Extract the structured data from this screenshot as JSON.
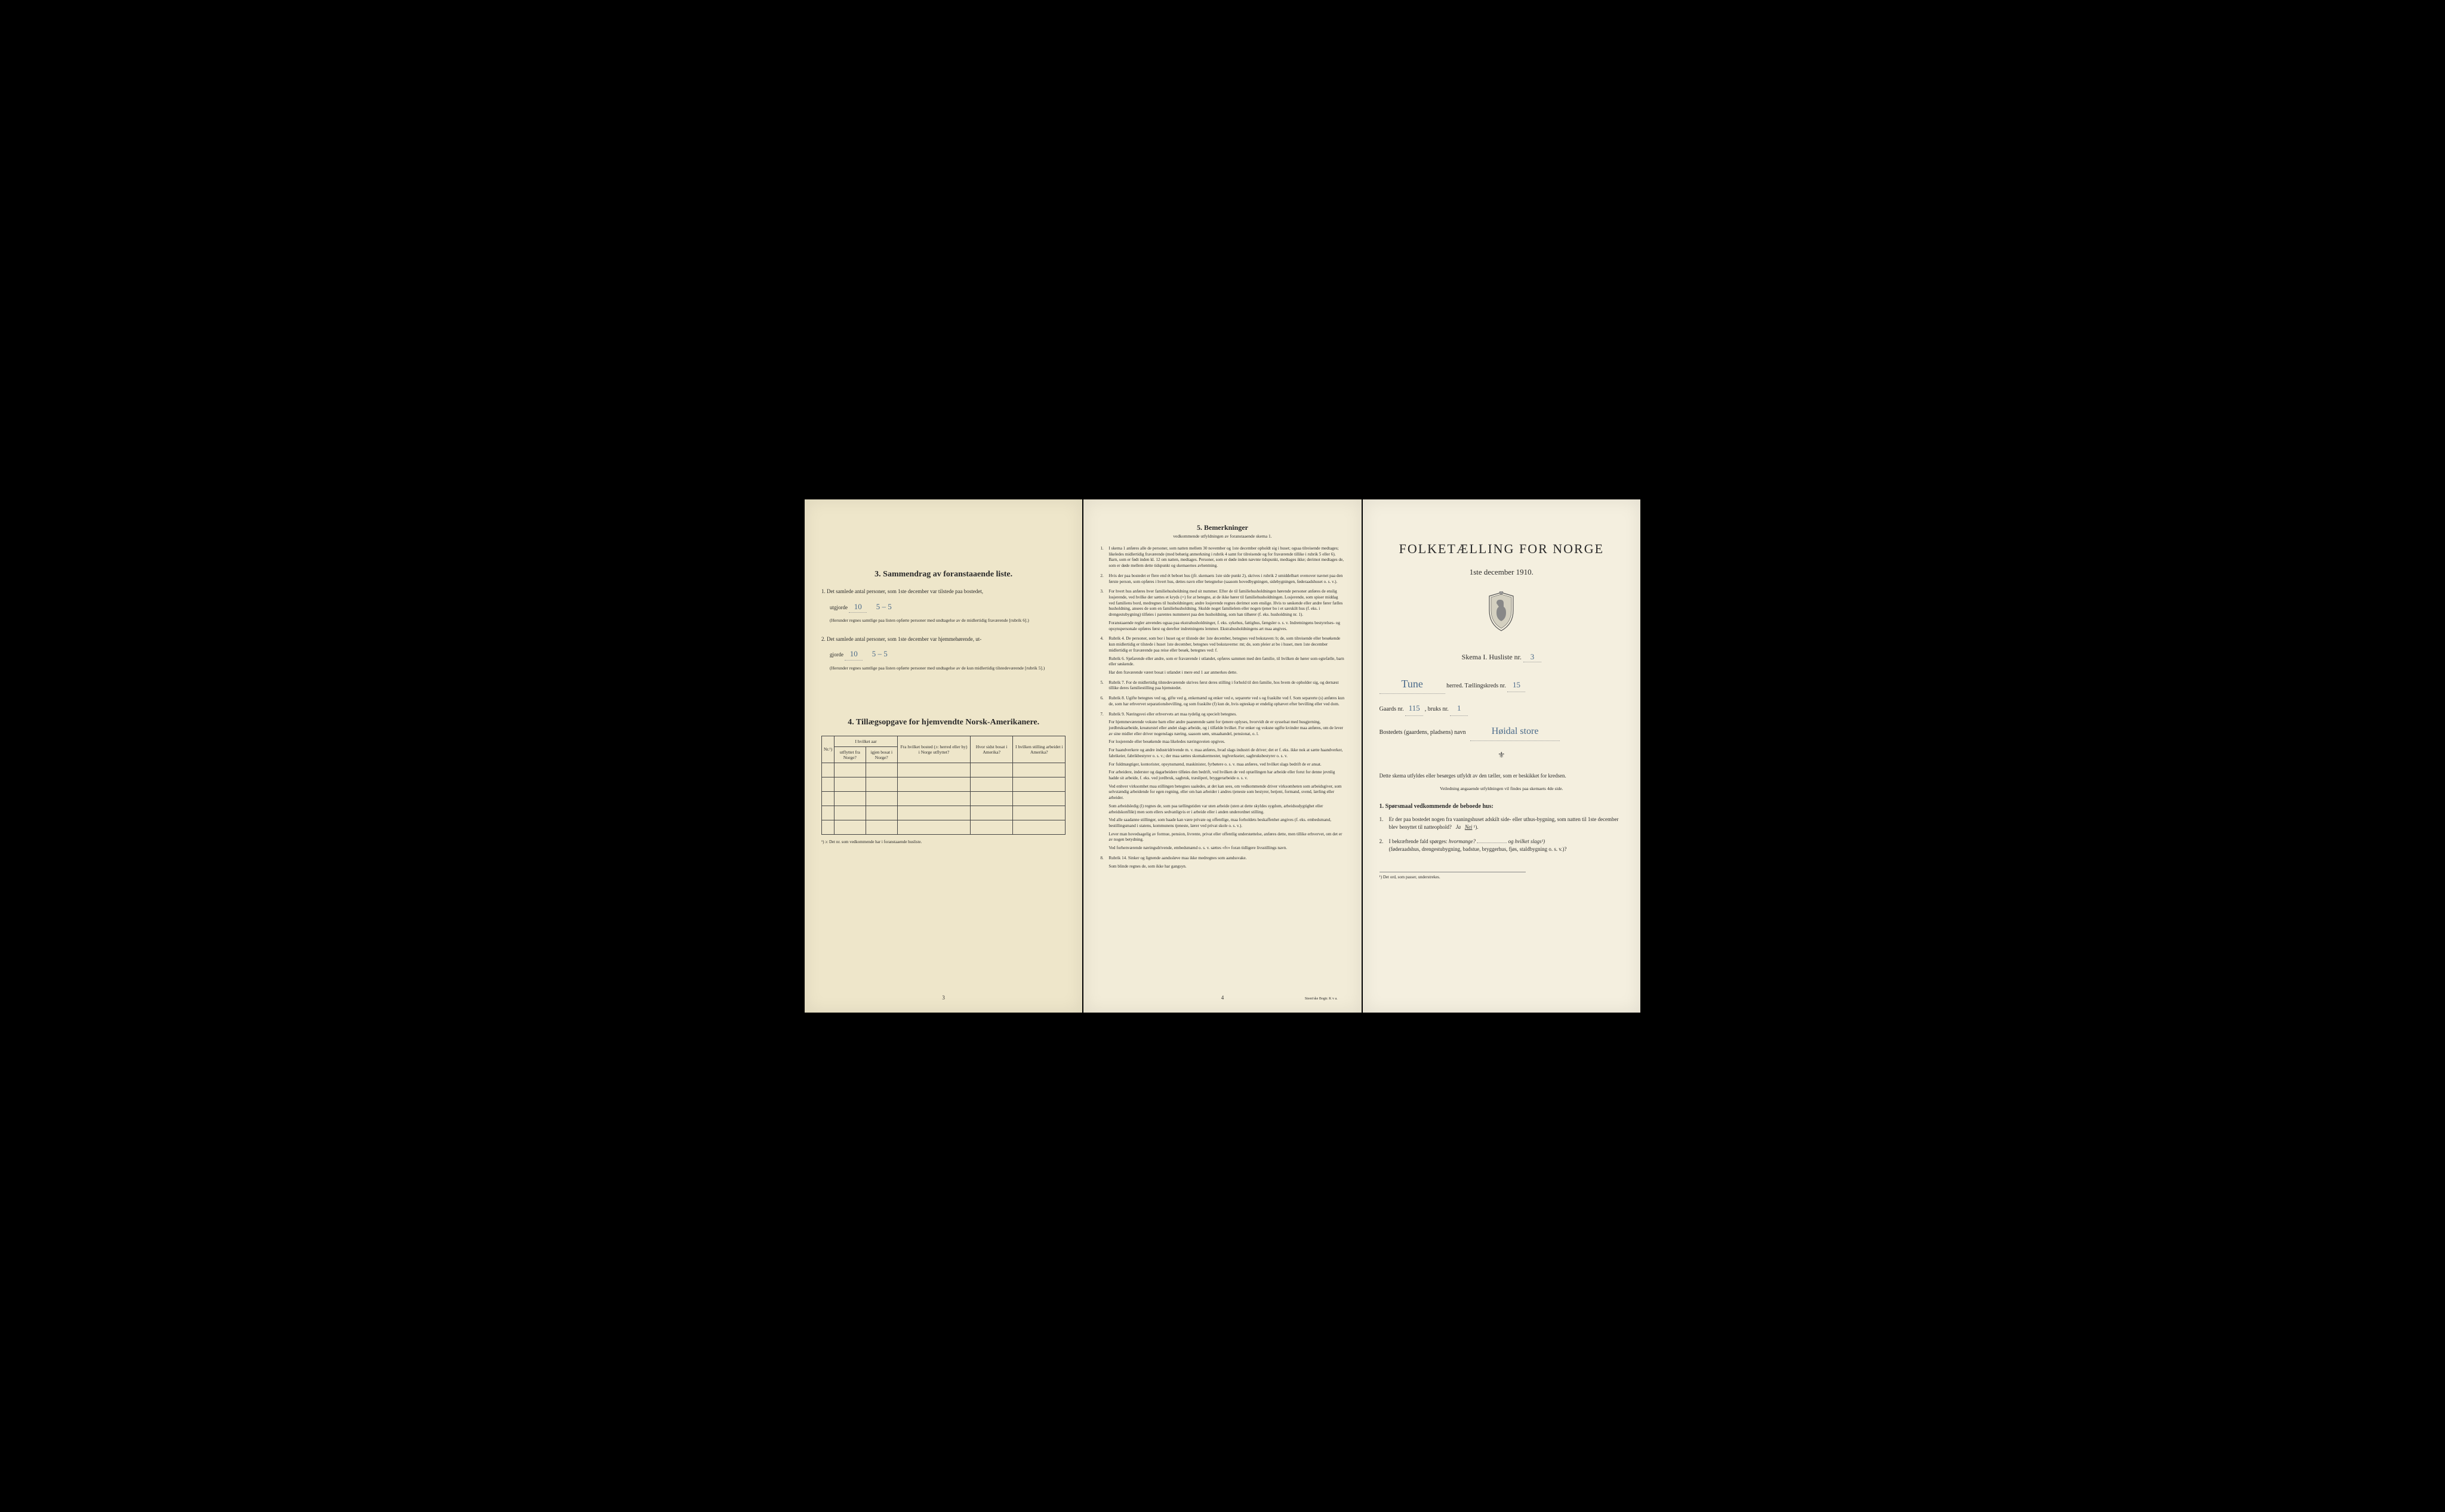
{
  "page1": {
    "section3_title": "3.  Sammendrag av foranstaaende liste.",
    "item1_label": "1.",
    "item1_text_a": "Det samlede antal personer, som 1ste december var tilstede paa bostedet,",
    "item1_text_b": "utgjorde",
    "item1_value": "10",
    "item1_value2": "5 – 5",
    "item1_note": "(Herunder regnes samtlige paa listen opførte personer med undtagelse av de midlertidig fraværende [rubrik 6].)",
    "item2_label": "2.",
    "item2_text_a": "Det samlede antal personer, som 1ste december var hjemmehørende, ut-",
    "item2_text_b": "gjorde",
    "item2_value": "10",
    "item2_value2": "5 – 5",
    "item2_note": "(Herunder regnes samtlige paa listen opførte personer med undtagelse av de kun midlertidig tilstedeværende [rubrik 5].)",
    "section4_title": "4.  Tillægsopgave for hjemvendte Norsk-Amerikanere.",
    "table_headers": {
      "col1": "Nr.¹)",
      "col2a": "I hvilket aar",
      "col2b": "utflyttet fra Norge?",
      "col2c": "igjen bosat i Norge?",
      "col3": "Fra hvilket bosted (ɔ: herred eller by) i Norge utflyttet?",
      "col4": "Hvor sidst bosat i Amerika?",
      "col5": "I hvilken stilling arbeidet i Amerika?"
    },
    "footnote": "¹) ɔ: Det nr. som vedkommende har i foranstaaende husliste.",
    "pagenum": "3"
  },
  "page2": {
    "title": "5.  Bemerkninger",
    "subtitle": "vedkommende utfyldningen av foranstaaende skema 1.",
    "items": [
      {
        "n": "1.",
        "t": "I skema 1 anføres alle de personer, som natten mellem 30 november og 1ste december opholdt sig i huset; ogsaa tilreisende medtages; likeledes midlertidig fraværende (med behørig anmerkning i rubrik 4 samt for tilreisende og for fraværende tillike i rubrik 5 eller 6). Barn, som er født inden kl. 12 om natten, medtages. Personer, som er døde inden nævnte tidspunkt, medtages ikke; derimot medtages de, som er døde mellem dette tidspunkt og skemaernes avhentning."
      },
      {
        "n": "2.",
        "t": "Hvis der paa bostedet er flere end ét beboet hus (jfr. skemaets 1ste side punkt 2), skrives i rubrik 2 umiddelbart ovenover navnet paa den første person, som opføres i hvert hus, dettes navn eller betegnelse (saasom hovedbygningen, sidebygningen, føderaadshuset o. s. v.)."
      },
      {
        "n": "3.",
        "t": "For hvert hus anføres hver familiehusholdning med sit nummer. Efter de til familiehusholdningen hørende personer anføres de enslig losjerende, ved hvilke der sættes et kryds (×) for at betegne, at de ikke hører til familiehusholdningen. Losjerende, som spiser middag ved familiens bord, medregnes til husholdningen; andre losjerende regnes derimot som enslige. Hvis to søskende eller andre fører fælles husholdning, ansees de som en familiehusholdning. Skulde noget familielem eller nogen tjener bo i et særskilt hus (f. eks. i drengestubygning) tilføies i parentes nummeret paa den husholdning, som han tilhører (f. eks. husholdning nr. 1).\n    Foranstaaende regler anvendes ogsaa paa ekstrahusholdninger, f. eks. sykehus, fattighus, fængsler o. s. v. Indretningens bestyrelses- og opsynspersonale opføres først og derefter indretningens lemmer. Ekstrahusholdningens art maa angives."
      },
      {
        "n": "4.",
        "t": "Rubrik 4. De personer, som bor i huset og er tilstede der 1ste december, betegnes ved bokstaven: b; de, som tilreisende eller besøkende kun midlertidig er tilstede i huset 1ste december, betegnes ved bokstaverne: mt; de, som pleier at bo i huset, men 1ste december midlertidig er fraværende paa reise eller besøk, betegnes ved: f.\n    Rubrik 6. Sjøfarende eller andre, som er fraværende i utlandet, opføres sammen med den familie, til hvilken de hører som egtefælle, barn eller søskende.\n    Har den fraværende været bosat i utlandet i mere end 1 aar anmerkes dette."
      },
      {
        "n": "5.",
        "t": "Rubrik 7. For de midlertidig tilstedeværende skrives først deres stilling i forhold til den familie, hos hvem de opholder sig, og dernæst tillike deres familiestilling paa hjemstedet."
      },
      {
        "n": "6.",
        "t": "Rubrik 8. Ugifte betegnes ved ug, gifte ved g, enkemænd og enker ved e, separerte ved s og fraskilte ved f. Som separerte (s) anføres kun de, som har erhvervet separationsbevilling, og som fraskilte (f) kun de, hvis egteskap er endelig ophævet efter bevilling eller ved dom."
      },
      {
        "n": "7.",
        "t": "Rubrik 9. Næringsvei eller erhvervets art maa tydelig og specielt betegnes.\n    For hjemmeværende voksne barn eller andre paarørende samt for tjenere oplyses, hvorvidt de er sysselsat med husgjerning, jordbruksarbeide, kreaturstel eller andet slags arbeide, og i tilfælde hvilket. For enker og voksne ugifte kvinder maa anføres, om de lever av sine midler eller driver nogenslags næring, saasom søm, smaahandel, pensionat, o. l.\n    For losjerende eller besøkende maa likeledes næringsveien opgives.\n    For haandverkere og andre industridrivende m. v. maa anføres, hvad slags industri de driver; det er f. eks. ikke nok at sætte haandverker, fabrikeier, fabrikbestyrer o. s. v.; der maa sættes skomakermester, teglverkseier, sagbruksbestyrer o. s. v.\n    For fuldmægtiger, kontorister, opsynsmænd, maskinister, fyrbøtere o. s. v. maa anføres, ved hvilket slags bedrift de er ansat.\n    For arbeidere, inderster og dagarbeidere tilføies den bedrift, ved hvilken de ved optællingen har arbeide eller forut for denne jevnlig hadde sit arbeide, f. eks. ved jordbruk, sagbruk, træsliperi, bryggerarbeide o. s. v.\n    Ved enhver virksomhet maa stillingen betegnes saaledes, at det kan sees, om vedkommende driver virksomheten som arbeidsgiver, som selvstændig arbeidende for egen regning, eller om han arbeider i andres tjeneste som bestyrer, betjent, formand, svend, lærling eller arbeider.\n    Som arbeidsledig (l) regnes de, som paa tællingstiden var uten arbeide (uten at dette skyldes sygdom, arbeidsudygtighet eller arbeidskonflikt) men som ellers sedvanligvis er i arbeide eller i anden underordnet stilling.\n    Ved alle saadanne stillinger, som baade kan være private og offentlige, maa forholdets beskaffenhet angives (f. eks. embedsmand, bestillingsmand i statens, kommunens tjeneste, lærer ved privat skole o. s. v.).\n    Lever man hovedsagelig av formue, pension, livrente, privat eller offentlig understøttelse, anføres dette, men tillike erhvervet, om det er av nogen betydning.\n    Ved forhenværende næringsdrivende, embedsmænd o. s. v. sættes «fv» foran tidligere livsstillings navn."
      },
      {
        "n": "8.",
        "t": "Rubrik 14. Sinker og lignende aandssløve maa ikke medregnes som aandssvake.\n    Som blinde regnes de, som ikke har gangsyn."
      }
    ],
    "pagenum": "4",
    "printer": "Steen'ske Bogtr.   K v a."
  },
  "page3": {
    "main_title": "FOLKETÆLLING FOR NORGE",
    "date": "1ste december 1910.",
    "skema_label": "Skema I.  Husliste nr.",
    "skema_nr": "3",
    "herred_value": "Tune",
    "herred_label": "herred.  Tællingskreds nr.",
    "kreds_nr": "15",
    "gaards_label": "Gaards nr.",
    "gaards_nr": "115",
    "bruks_label": ", bruks nr.",
    "bruks_nr": "1",
    "bosted_label": "Bostedets (gaardens, pladsens) navn",
    "bosted_value": "Høidal store",
    "instruct": "Dette skema utfyldes eller besørges utfyldt av den tæller, som er beskikket for kredsen.",
    "veiledning": "Veiledning angaaende utfyldningen vil findes paa skemaets 4de side.",
    "q_header": "1. Spørsmaal vedkommende de beboede hus:",
    "q1_n": "1.",
    "q1": "Er der paa bostedet nogen fra vaaningshuset adskilt side- eller uthus-bygning, som natten til 1ste december blev benyttet til natteophold?",
    "q1_ja": "Ja",
    "q1_nei": "Nei",
    "q1_sup": "¹).",
    "q2_n": "2.",
    "q2_a": "I bekræftende fald spørges:",
    "q2_hvormange": "hvormange?",
    "q2_b": "og hvilket slags¹)",
    "q2_c": "(føderaadshus, drengestubygning, badstue, bryggerhus, fjøs, staldbygning o. s. v.)?",
    "bottom_note": "¹) Det ord, som passer, understrekes."
  },
  "colors": {
    "paper1": "#eee6ca",
    "paper2": "#f2ecd8",
    "paper3": "#f4efdf",
    "ink": "#2a2a2a",
    "handwrite": "#4a6a8a",
    "background": "#000000"
  }
}
